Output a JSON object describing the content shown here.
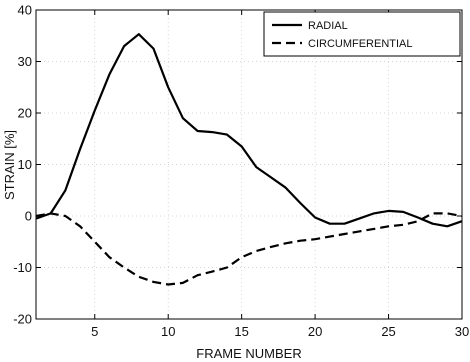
{
  "chart_data": {
    "type": "line",
    "xlabel": "FRAME NUMBER",
    "ylabel": "STRAIN [%]",
    "xlim": [
      1,
      30
    ],
    "ylim": [
      -20,
      40
    ],
    "xticks": [
      5,
      10,
      15,
      20,
      25,
      30
    ],
    "yticks": [
      -20,
      -10,
      0,
      10,
      20,
      30,
      40
    ],
    "x_tick_labels": [
      "5",
      "10",
      "15",
      "20",
      "25",
      "30"
    ],
    "y_tick_labels": [
      "-20",
      "-10",
      "0",
      "10",
      "20",
      "30",
      "40"
    ],
    "grid": true,
    "legend": "top-right",
    "series": [
      {
        "name": "RADIAL",
        "style": "solid",
        "color": "#000000",
        "x": [
          1,
          2,
          3,
          4,
          5,
          6,
          7,
          8,
          9,
          10,
          11,
          12,
          13,
          14,
          15,
          16,
          17,
          18,
          19,
          20,
          21,
          22,
          23,
          24,
          25,
          26,
          27,
          28,
          29,
          30
        ],
        "values": [
          -0.5,
          0.5,
          5,
          13,
          20.5,
          27.5,
          33,
          35.3,
          32.5,
          25,
          19,
          16.5,
          16.3,
          15.8,
          13.5,
          9.5,
          7.5,
          5.5,
          2.5,
          -0.3,
          -1.5,
          -1.5,
          -0.5,
          0.5,
          1,
          0.8,
          -0.3,
          -1.5,
          -2,
          -1
        ]
      },
      {
        "name": "CIRCUMFERENTIAL",
        "style": "dashed",
        "color": "#000000",
        "x": [
          1,
          2,
          3,
          4,
          5,
          6,
          7,
          8,
          9,
          10,
          11,
          12,
          13,
          14,
          15,
          16,
          17,
          18,
          19,
          20,
          21,
          22,
          23,
          24,
          25,
          26,
          27,
          28,
          29,
          30
        ],
        "values": [
          0,
          0.5,
          0,
          -2,
          -5,
          -8,
          -10,
          -11.8,
          -12.8,
          -13.3,
          -13,
          -11.5,
          -10.8,
          -10,
          -8,
          -6.8,
          -6,
          -5.3,
          -4.8,
          -4.5,
          -4,
          -3.5,
          -3,
          -2.5,
          -2,
          -1.7,
          -1,
          0.5,
          0.5,
          0
        ]
      }
    ]
  }
}
